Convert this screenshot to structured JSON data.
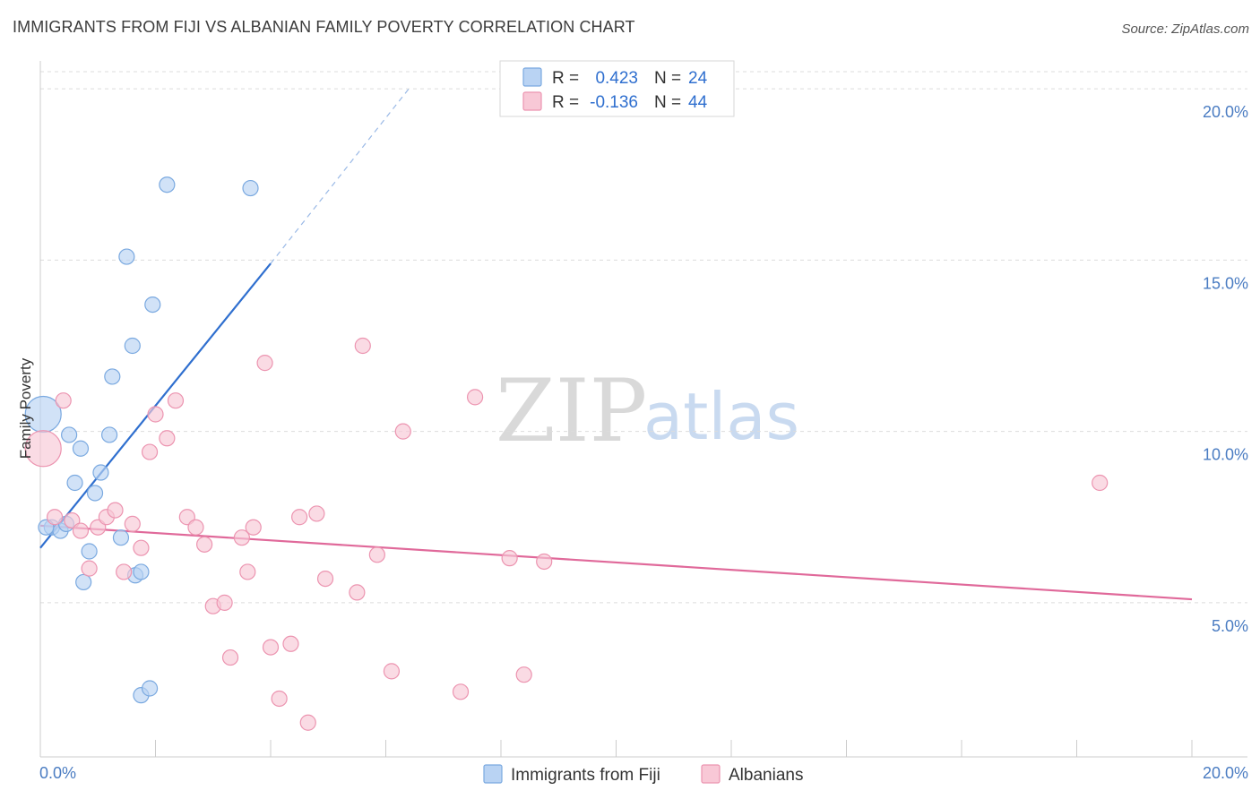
{
  "header": {
    "title": "IMMIGRANTS FROM FIJI VS ALBANIAN FAMILY POVERTY CORRELATION CHART",
    "source": "Source: ZipAtlas.com"
  },
  "watermark": {
    "zip": "ZIP",
    "atlas": "atlas"
  },
  "colors": {
    "fiji_fill": "#b9d3f3",
    "fiji_stroke": "#7aa9e0",
    "fiji_line": "#2f6fcf",
    "alb_fill": "#f8c8d6",
    "alb_stroke": "#ec94b0",
    "alb_line": "#e0699a",
    "grid": "#dcdcdc",
    "axis_text": "#4a7cc2"
  },
  "chart_data": {
    "type": "scatter",
    "xlabel": "",
    "ylabel": "Family Poverty",
    "xlim": [
      0,
      20
    ],
    "ylim": [
      0.5,
      20.5
    ],
    "x_ticks": [
      "0.0%",
      "20.0%"
    ],
    "y_ticks": [
      {
        "value": 5,
        "label": "5.0%"
      },
      {
        "value": 10,
        "label": "10.0%"
      },
      {
        "value": 15,
        "label": "15.0%"
      },
      {
        "value": 20,
        "label": "20.0%"
      }
    ],
    "grid": true,
    "legend_position": "top-center",
    "legend": [
      {
        "series": "fiji",
        "r_label": "R =",
        "r_value": "0.423",
        "n_label": "N =",
        "n_value": "24"
      },
      {
        "series": "albanians",
        "r_label": "R =",
        "r_value": "-0.136",
        "n_label": "N =",
        "n_value": "44"
      }
    ],
    "series": [
      {
        "key": "fiji",
        "name": "Immigrants from Fiji",
        "points": [
          {
            "x": 0.05,
            "y": 10.5,
            "big": true
          },
          {
            "x": 0.2,
            "y": 7.2
          },
          {
            "x": 0.35,
            "y": 7.1
          },
          {
            "x": 0.45,
            "y": 7.3
          },
          {
            "x": 0.5,
            "y": 9.9
          },
          {
            "x": 0.6,
            "y": 8.5
          },
          {
            "x": 0.7,
            "y": 9.5
          },
          {
            "x": 0.75,
            "y": 5.6
          },
          {
            "x": 0.85,
            "y": 6.5
          },
          {
            "x": 0.95,
            "y": 8.2
          },
          {
            "x": 1.05,
            "y": 8.8
          },
          {
            "x": 1.2,
            "y": 9.9
          },
          {
            "x": 1.25,
            "y": 11.6
          },
          {
            "x": 1.4,
            "y": 6.9
          },
          {
            "x": 1.5,
            "y": 15.1
          },
          {
            "x": 1.6,
            "y": 12.5
          },
          {
            "x": 1.65,
            "y": 5.8
          },
          {
            "x": 1.75,
            "y": 5.9
          },
          {
            "x": 1.75,
            "y": 2.3
          },
          {
            "x": 1.9,
            "y": 2.5
          },
          {
            "x": 1.95,
            "y": 13.7
          },
          {
            "x": 2.2,
            "y": 17.2
          },
          {
            "x": 3.65,
            "y": 17.1
          },
          {
            "x": 0.1,
            "y": 7.2
          }
        ],
        "trend": {
          "x0": 0,
          "y0": 6.6,
          "x1": 4.0,
          "y1": 14.9,
          "dash_to_x": 6.4,
          "dash_to_y": 20.0
        }
      },
      {
        "key": "albanians",
        "name": "Albanians",
        "points": [
          {
            "x": 0.05,
            "y": 9.5,
            "big": true
          },
          {
            "x": 0.25,
            "y": 7.5
          },
          {
            "x": 0.4,
            "y": 10.9
          },
          {
            "x": 0.55,
            "y": 7.4
          },
          {
            "x": 0.7,
            "y": 7.1
          },
          {
            "x": 0.85,
            "y": 6.0
          },
          {
            "x": 1.0,
            "y": 7.2
          },
          {
            "x": 1.15,
            "y": 7.5
          },
          {
            "x": 1.3,
            "y": 7.7
          },
          {
            "x": 1.45,
            "y": 5.9
          },
          {
            "x": 1.6,
            "y": 7.3
          },
          {
            "x": 1.75,
            "y": 6.6
          },
          {
            "x": 1.9,
            "y": 9.4
          },
          {
            "x": 2.0,
            "y": 10.5
          },
          {
            "x": 2.2,
            "y": 9.8
          },
          {
            "x": 2.35,
            "y": 10.9
          },
          {
            "x": 2.55,
            "y": 7.5
          },
          {
            "x": 2.7,
            "y": 7.2
          },
          {
            "x": 2.85,
            "y": 6.7
          },
          {
            "x": 3.0,
            "y": 4.9
          },
          {
            "x": 3.2,
            "y": 5.0
          },
          {
            "x": 3.3,
            "y": 3.4
          },
          {
            "x": 3.5,
            "y": 6.9
          },
          {
            "x": 3.6,
            "y": 5.9
          },
          {
            "x": 3.7,
            "y": 7.2
          },
          {
            "x": 3.9,
            "y": 12.0
          },
          {
            "x": 4.0,
            "y": 3.7
          },
          {
            "x": 4.15,
            "y": 2.2
          },
          {
            "x": 4.35,
            "y": 3.8
          },
          {
            "x": 4.5,
            "y": 7.5
          },
          {
            "x": 4.65,
            "y": 1.5
          },
          {
            "x": 4.8,
            "y": 7.6
          },
          {
            "x": 4.95,
            "y": 5.7
          },
          {
            "x": 5.5,
            "y": 5.3
          },
          {
            "x": 5.6,
            "y": 12.5
          },
          {
            "x": 5.85,
            "y": 6.4
          },
          {
            "x": 6.1,
            "y": 3.0
          },
          {
            "x": 6.3,
            "y": 10.0
          },
          {
            "x": 7.3,
            "y": 2.4
          },
          {
            "x": 7.55,
            "y": 11.0
          },
          {
            "x": 8.15,
            "y": 6.3
          },
          {
            "x": 8.4,
            "y": 2.9
          },
          {
            "x": 8.75,
            "y": 6.2
          },
          {
            "x": 18.4,
            "y": 8.5
          }
        ],
        "trend": {
          "x0": 0,
          "y0": 7.25,
          "x1": 20,
          "y1": 5.1
        }
      }
    ]
  }
}
